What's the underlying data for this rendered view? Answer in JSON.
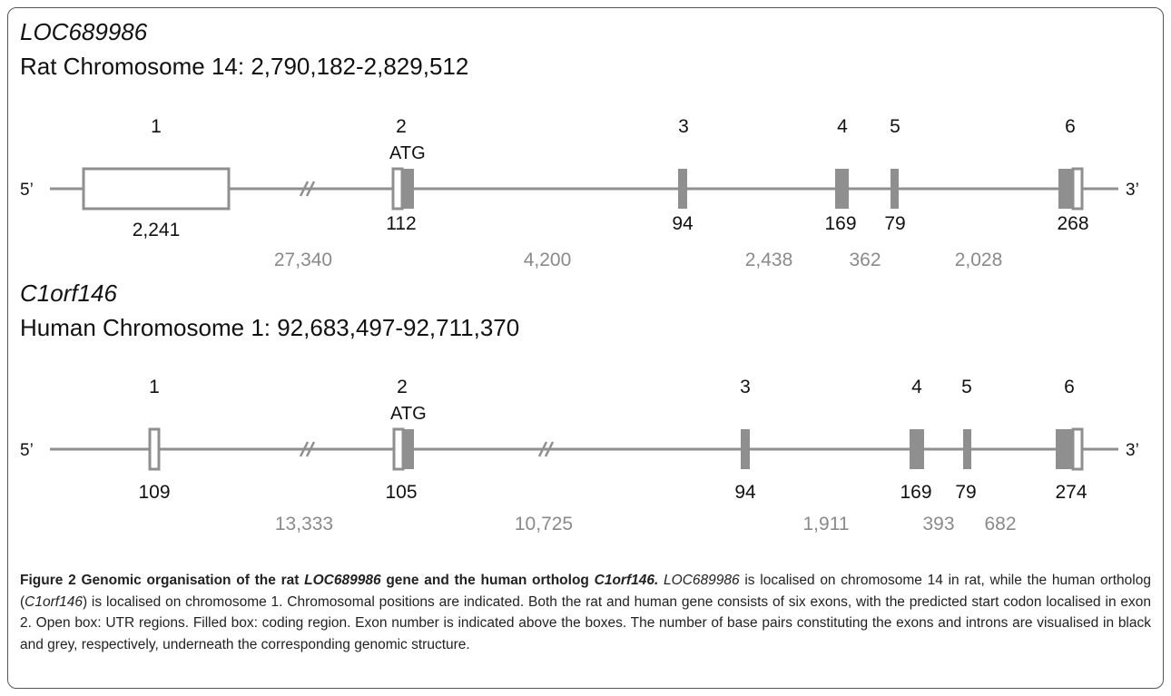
{
  "rat": {
    "gene": "LOC689986",
    "chromosome": "Rat Chromosome 14: 2,790,182-2,829,512",
    "five_prime": "5’",
    "three_prime": "3’",
    "start_codon": "ATG",
    "exons": [
      {
        "number": "1",
        "length": "2,241"
      },
      {
        "number": "2",
        "length": "112"
      },
      {
        "number": "3",
        "length": "94"
      },
      {
        "number": "4",
        "length": "169"
      },
      {
        "number": "5",
        "length": "79"
      },
      {
        "number": "6",
        "length": "268"
      }
    ],
    "introns": [
      "27,340",
      "4,200",
      "2,438",
      "362",
      "2,028"
    ]
  },
  "human": {
    "gene": "C1orf146",
    "chromosome": "Human Chromosome 1: 92,683,497-92,711,370",
    "five_prime": "5’",
    "three_prime": "3’",
    "start_codon": "ATG",
    "exons": [
      {
        "number": "1",
        "length": "109"
      },
      {
        "number": "2",
        "length": "105"
      },
      {
        "number": "3",
        "length": "94"
      },
      {
        "number": "4",
        "length": "169"
      },
      {
        "number": "5",
        "length": "79"
      },
      {
        "number": "6",
        "length": "274"
      }
    ],
    "introns": [
      "13,333",
      "10,725",
      "1,911",
      "393",
      "682"
    ]
  },
  "caption": {
    "figure_label": "Figure 2",
    "title_1": " Genomic organisation of the rat ",
    "title_gene_rat": "LOC689986",
    "title_2": " gene and the human ortholog ",
    "title_gene_human": "C1orf146.",
    "body_gene_rat": " LOC689986",
    "body_1": " is localised on chromosome 14 in rat, while the human ortholog (",
    "body_gene_human": "C1orf146",
    "body_2": ") is localised on chromosome 1. Chromosomal positions are indicated. Both the rat and human gene consists of six exons, with the predicted start codon localised in exon 2. Open box: UTR regions. Filled box: coding region. Exon number is indicated above the boxes. The number of base pairs constituting the exons and introns are visualised in black and grey, respectively, underneath the corresponding genomic structure."
  },
  "colors": {
    "line": "#8f8f8f",
    "exon_fill": "#8f8f8f",
    "utr_fill": "#ffffff",
    "intron_text": "#8a8a8a",
    "exon_text": "#111111"
  }
}
